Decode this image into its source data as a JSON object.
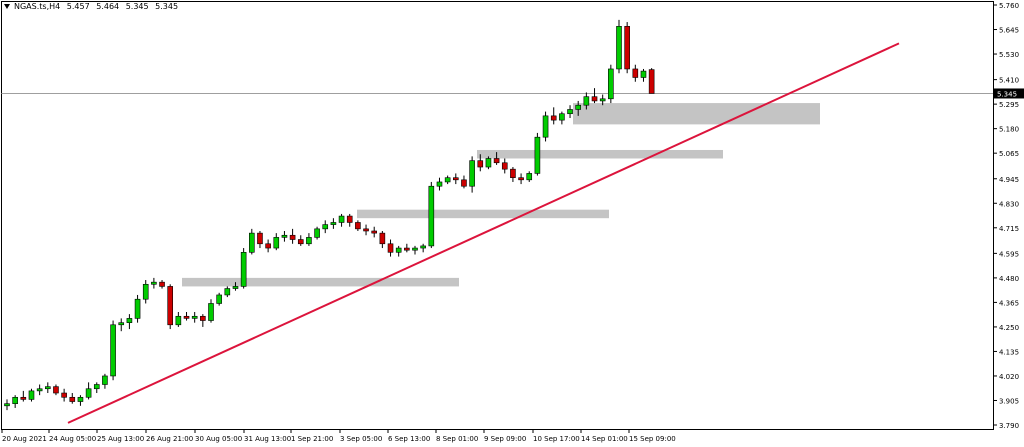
{
  "symbol": {
    "name": "NGAS.ts,H4",
    "open": "5.457",
    "high": "5.464",
    "low": "5.345",
    "close": "5.345"
  },
  "colors": {
    "bull": "#00cc00",
    "bear": "#cc0000",
    "wick": "#000000",
    "zone": "#c4c4c4",
    "trendline": "#dc143c",
    "grid_frame": "#000000",
    "price_line": "#7f7f7f"
  },
  "chart_data": {
    "type": "candlestick",
    "title": "NGAS.ts,H4",
    "ylim": [
      3.79,
      5.76
    ],
    "y_ticks": [
      "5.760",
      "5.645",
      "5.530",
      "5.410",
      "5.295",
      "5.180",
      "5.065",
      "4.945",
      "4.830",
      "4.715",
      "4.595",
      "4.480",
      "4.365",
      "4.250",
      "4.135",
      "4.020",
      "3.905",
      "3.790"
    ],
    "current_price": "5.345",
    "x_ticks": [
      "20 Aug 2021",
      "24 Aug 05:00",
      "25 Aug 13:00",
      "26 Aug 21:00",
      "30 Aug 05:00",
      "31 Aug 13:00",
      "1 Sep 21:00",
      "3 Sep 05:00",
      "6 Sep 13:00",
      "8 Sep 01:00",
      "9 Sep 09:00",
      "10 Sep 17:00",
      "14 Sep 01:00",
      "15 Sep 09:00"
    ],
    "candles": [
      {
        "o": 3.88,
        "h": 3.91,
        "l": 3.86,
        "c": 3.89
      },
      {
        "o": 3.89,
        "h": 3.93,
        "l": 3.87,
        "c": 3.92
      },
      {
        "o": 3.92,
        "h": 3.95,
        "l": 3.9,
        "c": 3.91
      },
      {
        "o": 3.91,
        "h": 3.96,
        "l": 3.9,
        "c": 3.95
      },
      {
        "o": 3.95,
        "h": 3.98,
        "l": 3.93,
        "c": 3.96
      },
      {
        "o": 3.96,
        "h": 3.99,
        "l": 3.94,
        "c": 3.97
      },
      {
        "o": 3.97,
        "h": 3.98,
        "l": 3.93,
        "c": 3.94
      },
      {
        "o": 3.94,
        "h": 3.96,
        "l": 3.9,
        "c": 3.92
      },
      {
        "o": 3.92,
        "h": 3.94,
        "l": 3.89,
        "c": 3.9
      },
      {
        "o": 3.9,
        "h": 3.93,
        "l": 3.88,
        "c": 3.92
      },
      {
        "o": 3.92,
        "h": 3.99,
        "l": 3.91,
        "c": 3.96
      },
      {
        "o": 3.96,
        "h": 3.99,
        "l": 3.94,
        "c": 3.98
      },
      {
        "o": 3.98,
        "h": 4.03,
        "l": 3.96,
        "c": 4.02
      },
      {
        "o": 4.02,
        "h": 4.28,
        "l": 4.0,
        "c": 4.26
      },
      {
        "o": 4.26,
        "h": 4.29,
        "l": 4.23,
        "c": 4.27
      },
      {
        "o": 4.27,
        "h": 4.31,
        "l": 4.24,
        "c": 4.29
      },
      {
        "o": 4.29,
        "h": 4.4,
        "l": 4.27,
        "c": 4.38
      },
      {
        "o": 4.38,
        "h": 4.47,
        "l": 4.36,
        "c": 4.45
      },
      {
        "o": 4.45,
        "h": 4.48,
        "l": 4.43,
        "c": 4.46
      },
      {
        "o": 4.46,
        "h": 4.47,
        "l": 4.43,
        "c": 4.44
      },
      {
        "o": 4.44,
        "h": 4.45,
        "l": 4.24,
        "c": 4.26
      },
      {
        "o": 4.26,
        "h": 4.32,
        "l": 4.25,
        "c": 4.3
      },
      {
        "o": 4.3,
        "h": 4.32,
        "l": 4.28,
        "c": 4.29
      },
      {
        "o": 4.29,
        "h": 4.32,
        "l": 4.27,
        "c": 4.3
      },
      {
        "o": 4.3,
        "h": 4.31,
        "l": 4.25,
        "c": 4.28
      },
      {
        "o": 4.28,
        "h": 4.38,
        "l": 4.27,
        "c": 4.36
      },
      {
        "o": 4.36,
        "h": 4.41,
        "l": 4.35,
        "c": 4.4
      },
      {
        "o": 4.4,
        "h": 4.44,
        "l": 4.39,
        "c": 4.43
      },
      {
        "o": 4.43,
        "h": 4.46,
        "l": 4.42,
        "c": 4.44
      },
      {
        "o": 4.44,
        "h": 4.62,
        "l": 4.43,
        "c": 4.6
      },
      {
        "o": 4.6,
        "h": 4.71,
        "l": 4.59,
        "c": 4.69
      },
      {
        "o": 4.69,
        "h": 4.7,
        "l": 4.62,
        "c": 4.64
      },
      {
        "o": 4.64,
        "h": 4.66,
        "l": 4.6,
        "c": 4.62
      },
      {
        "o": 4.62,
        "h": 4.69,
        "l": 4.61,
        "c": 4.67
      },
      {
        "o": 4.67,
        "h": 4.7,
        "l": 4.65,
        "c": 4.68
      },
      {
        "o": 4.68,
        "h": 4.71,
        "l": 4.64,
        "c": 4.66
      },
      {
        "o": 4.66,
        "h": 4.68,
        "l": 4.63,
        "c": 4.64
      },
      {
        "o": 4.64,
        "h": 4.69,
        "l": 4.63,
        "c": 4.67
      },
      {
        "o": 4.67,
        "h": 4.72,
        "l": 4.66,
        "c": 4.71
      },
      {
        "o": 4.71,
        "h": 4.75,
        "l": 4.69,
        "c": 4.73
      },
      {
        "o": 4.73,
        "h": 4.76,
        "l": 4.71,
        "c": 4.74
      },
      {
        "o": 4.74,
        "h": 4.78,
        "l": 4.72,
        "c": 4.77
      },
      {
        "o": 4.77,
        "h": 4.78,
        "l": 4.72,
        "c": 4.74
      },
      {
        "o": 4.74,
        "h": 4.75,
        "l": 4.7,
        "c": 4.71
      },
      {
        "o": 4.71,
        "h": 4.73,
        "l": 4.68,
        "c": 4.7
      },
      {
        "o": 4.7,
        "h": 4.72,
        "l": 4.67,
        "c": 4.69
      },
      {
        "o": 4.69,
        "h": 4.7,
        "l": 4.62,
        "c": 4.64
      },
      {
        "o": 4.64,
        "h": 4.66,
        "l": 4.58,
        "c": 4.6
      },
      {
        "o": 4.6,
        "h": 4.63,
        "l": 4.58,
        "c": 4.62
      },
      {
        "o": 4.62,
        "h": 4.64,
        "l": 4.6,
        "c": 4.61
      },
      {
        "o": 4.61,
        "h": 4.63,
        "l": 4.59,
        "c": 4.62
      },
      {
        "o": 4.62,
        "h": 4.64,
        "l": 4.6,
        "c": 4.63
      },
      {
        "o": 4.63,
        "h": 4.93,
        "l": 4.62,
        "c": 4.91
      },
      {
        "o": 4.91,
        "h": 4.95,
        "l": 4.89,
        "c": 4.93
      },
      {
        "o": 4.93,
        "h": 4.96,
        "l": 4.92,
        "c": 4.95
      },
      {
        "o": 4.95,
        "h": 4.97,
        "l": 4.92,
        "c": 4.94
      },
      {
        "o": 4.94,
        "h": 4.96,
        "l": 4.9,
        "c": 4.91
      },
      {
        "o": 4.91,
        "h": 5.05,
        "l": 4.88,
        "c": 5.03
      },
      {
        "o": 5.03,
        "h": 5.06,
        "l": 4.98,
        "c": 5.0
      },
      {
        "o": 5.0,
        "h": 5.05,
        "l": 4.99,
        "c": 5.04
      },
      {
        "o": 5.04,
        "h": 5.07,
        "l": 5.01,
        "c": 5.02
      },
      {
        "o": 5.02,
        "h": 5.04,
        "l": 4.97,
        "c": 4.99
      },
      {
        "o": 4.99,
        "h": 5.0,
        "l": 4.93,
        "c": 4.95
      },
      {
        "o": 4.95,
        "h": 4.97,
        "l": 4.92,
        "c": 4.94
      },
      {
        "o": 4.94,
        "h": 4.98,
        "l": 4.93,
        "c": 4.97
      },
      {
        "o": 4.97,
        "h": 5.16,
        "l": 4.96,
        "c": 5.14
      },
      {
        "o": 5.14,
        "h": 5.26,
        "l": 5.12,
        "c": 5.24
      },
      {
        "o": 5.24,
        "h": 5.28,
        "l": 5.2,
        "c": 5.22
      },
      {
        "o": 5.22,
        "h": 5.26,
        "l": 5.2,
        "c": 5.25
      },
      {
        "o": 5.25,
        "h": 5.29,
        "l": 5.23,
        "c": 5.27
      },
      {
        "o": 5.27,
        "h": 5.31,
        "l": 5.24,
        "c": 5.29
      },
      {
        "o": 5.29,
        "h": 5.35,
        "l": 5.27,
        "c": 5.33
      },
      {
        "o": 5.33,
        "h": 5.37,
        "l": 5.3,
        "c": 5.31
      },
      {
        "o": 5.31,
        "h": 5.34,
        "l": 5.29,
        "c": 5.32
      },
      {
        "o": 5.32,
        "h": 5.48,
        "l": 5.3,
        "c": 5.46
      },
      {
        "o": 5.46,
        "h": 5.69,
        "l": 5.44,
        "c": 5.66
      },
      {
        "o": 5.66,
        "h": 5.68,
        "l": 5.44,
        "c": 5.46
      },
      {
        "o": 5.46,
        "h": 5.48,
        "l": 5.4,
        "c": 5.42
      },
      {
        "o": 5.42,
        "h": 5.46,
        "l": 5.4,
        "c": 5.45
      },
      {
        "o": 5.457,
        "h": 5.464,
        "l": 5.345,
        "c": 5.345
      }
    ],
    "zones": [
      {
        "price_top": 4.48,
        "price_bottom": 4.44
      },
      {
        "price_top": 4.8,
        "price_bottom": 4.76
      },
      {
        "price_top": 5.08,
        "price_bottom": 5.04
      },
      {
        "price_top": 5.3,
        "price_bottom": 5.2
      }
    ],
    "trendline": {
      "from_price": 3.8,
      "to_price": 5.58
    },
    "grid": false,
    "legend": "none"
  }
}
